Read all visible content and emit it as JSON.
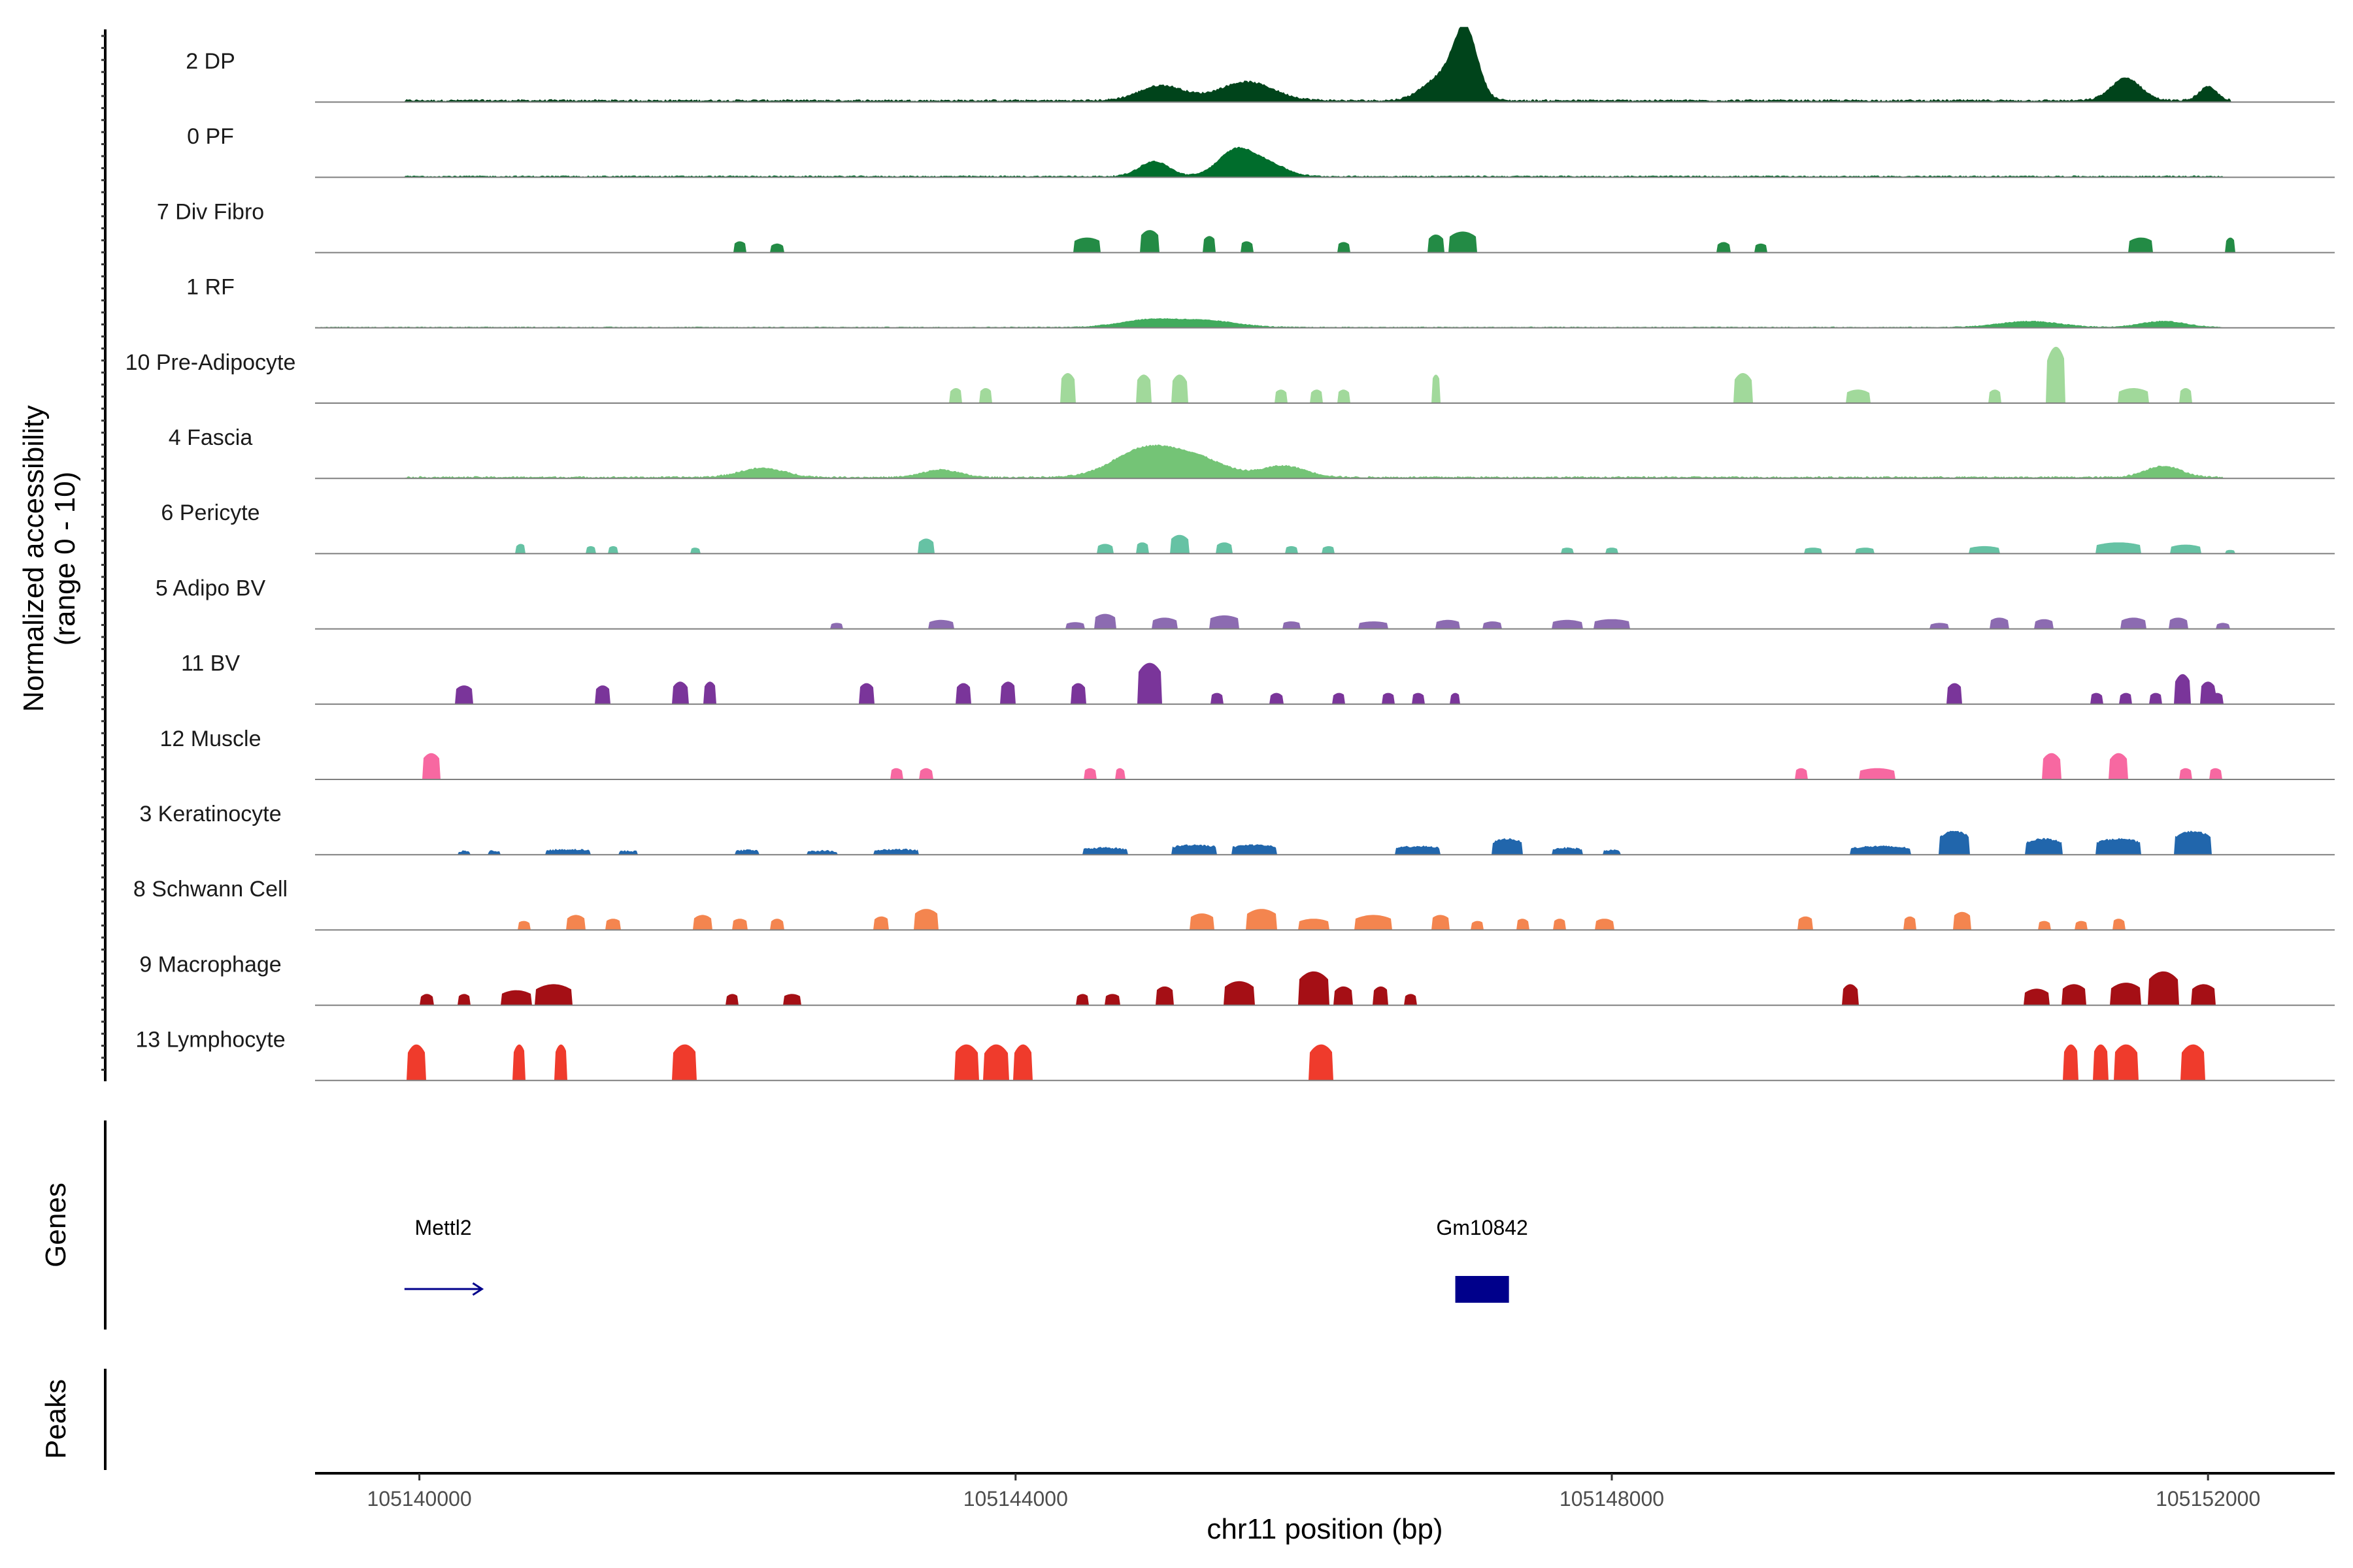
{
  "chart_data": {
    "type": "area",
    "ylabel_line1": "Normalized accessibility",
    "ylabel_line2": "(range 0 - 10)",
    "xlabel": "chr11 position (bp)",
    "xlim": [
      105139300,
      105152850
    ],
    "ylim": [
      0,
      10
    ],
    "xticks": [
      {
        "value": 105140000,
        "label": "105140000"
      },
      {
        "value": 105144000,
        "label": "105144000"
      },
      {
        "value": 105148000,
        "label": "105148000"
      },
      {
        "value": 105152000,
        "label": "105152000"
      }
    ],
    "genes_label": "Genes",
    "peaks_label": "Peaks",
    "genes": [
      {
        "name": "Mettl2",
        "start": 105139900,
        "end": 105140420,
        "strand": "+",
        "kind": "arrow",
        "color": "#00008b"
      },
      {
        "name": "Gm10842",
        "start": 105146950,
        "end": 105147310,
        "strand": "+",
        "kind": "block",
        "color": "#00008b"
      }
    ],
    "series": [
      {
        "name": "2 DP",
        "color": "#00441b",
        "noise": 0.45,
        "continuous": true,
        "range": [
          105139900,
          105152150
        ],
        "peaks": [
          [
            105147020,
            9.0,
            80
          ],
          [
            105146850,
            3.0,
            120
          ],
          [
            105151450,
            3.0,
            100
          ],
          [
            105144980,
            2.0,
            150
          ],
          [
            105145550,
            2.5,
            180
          ],
          [
            105152000,
            1.8,
            60
          ]
        ]
      },
      {
        "name": "0 PF",
        "color": "#006d2c",
        "noise": 0.3,
        "continuous": true,
        "range": [
          105139900,
          105152100
        ],
        "peaks": [
          [
            105145480,
            3.5,
            120
          ],
          [
            105144930,
            2.0,
            100
          ],
          [
            105145700,
            1.5,
            120
          ]
        ]
      },
      {
        "name": "7 Div Fibro",
        "color": "#238b45",
        "noise": 0.0,
        "continuous": false,
        "peaks": [
          [
            105142150,
            1.5,
            40
          ],
          [
            105142400,
            1.2,
            40
          ],
          [
            105144480,
            2.0,
            90
          ],
          [
            105144900,
            3.0,
            60
          ],
          [
            105145300,
            2.2,
            40
          ],
          [
            105145550,
            1.5,
            40
          ],
          [
            105146200,
            1.4,
            40
          ],
          [
            105146820,
            2.4,
            50
          ],
          [
            105147000,
            2.8,
            90
          ],
          [
            105148750,
            1.4,
            40
          ],
          [
            105149000,
            1.2,
            40
          ],
          [
            105151550,
            2.0,
            80
          ],
          [
            105152150,
            2.0,
            30
          ]
        ]
      },
      {
        "name": "1 RF",
        "color": "#41ab5d",
        "noise": 0.2,
        "continuous": true,
        "range": [
          105139300,
          105152100
        ],
        "peaks": [
          [
            105144900,
            1.0,
            200
          ],
          [
            105145300,
            0.8,
            200
          ],
          [
            105150800,
            0.8,
            200
          ],
          [
            105151700,
            0.8,
            150
          ]
        ]
      },
      {
        "name": "10 Pre-Adipocyte",
        "color": "#a1d99b",
        "noise": 0.0,
        "continuous": false,
        "peaks": [
          [
            105143600,
            2.0,
            40
          ],
          [
            105143800,
            2.0,
            40
          ],
          [
            105144350,
            4.0,
            50
          ],
          [
            105144860,
            3.8,
            50
          ],
          [
            105145100,
            3.8,
            50
          ],
          [
            105145780,
            1.8,
            40
          ],
          [
            105146020,
            1.8,
            40
          ],
          [
            105146200,
            1.8,
            40
          ],
          [
            105146820,
            3.8,
            30
          ],
          [
            105148880,
            4.0,
            60
          ],
          [
            105149650,
            1.8,
            80
          ],
          [
            105150570,
            1.8,
            40
          ],
          [
            105150980,
            7.5,
            60
          ],
          [
            105151500,
            2.0,
            100
          ],
          [
            105151850,
            2.0,
            40
          ]
        ]
      },
      {
        "name": "4 Fascia",
        "color": "#74c476",
        "noise": 0.35,
        "continuous": true,
        "range": [
          105139900,
          105152100
        ],
        "peaks": [
          [
            105144850,
            3.5,
            200
          ],
          [
            105145200,
            2.5,
            200
          ],
          [
            105145800,
            1.5,
            150
          ],
          [
            105151700,
            1.5,
            120
          ],
          [
            105142300,
            1.2,
            150
          ],
          [
            105143500,
            1.0,
            120
          ]
        ]
      },
      {
        "name": "6 Pericyte",
        "color": "#66c2a4",
        "noise": 0.0,
        "continuous": false,
        "peaks": [
          [
            105140680,
            1.3,
            30
          ],
          [
            105141150,
            1.0,
            30
          ],
          [
            105141300,
            1.0,
            30
          ],
          [
            105141850,
            0.8,
            30
          ],
          [
            105143400,
            2.0,
            50
          ],
          [
            105144600,
            1.3,
            50
          ],
          [
            105144850,
            1.5,
            40
          ],
          [
            105145100,
            2.5,
            60
          ],
          [
            105145400,
            1.5,
            50
          ],
          [
            105145850,
            1.0,
            40
          ],
          [
            105146100,
            1.0,
            40
          ],
          [
            105147700,
            0.8,
            40
          ],
          [
            105148000,
            0.8,
            40
          ],
          [
            105149350,
            0.8,
            60
          ],
          [
            105149700,
            0.8,
            60
          ],
          [
            105150500,
            1.0,
            100
          ],
          [
            105151400,
            1.5,
            150
          ],
          [
            105151850,
            1.2,
            100
          ],
          [
            105152150,
            0.5,
            30
          ]
        ]
      },
      {
        "name": "5 Adipo BV",
        "color": "#8c6bb1",
        "noise": 0.0,
        "continuous": false,
        "peaks": [
          [
            105142800,
            0.8,
            40
          ],
          [
            105143500,
            1.2,
            80
          ],
          [
            105144400,
            0.9,
            60
          ],
          [
            105144600,
            2.0,
            70
          ],
          [
            105145000,
            1.5,
            80
          ],
          [
            105145400,
            1.8,
            100
          ],
          [
            105145850,
            1.0,
            60
          ],
          [
            105146400,
            1.0,
            100
          ],
          [
            105146900,
            1.2,
            80
          ],
          [
            105147200,
            1.0,
            60
          ],
          [
            105147700,
            1.2,
            100
          ],
          [
            105148000,
            1.3,
            120
          ],
          [
            105150200,
            0.8,
            60
          ],
          [
            105150600,
            1.5,
            60
          ],
          [
            105150900,
            1.3,
            60
          ],
          [
            105151500,
            1.5,
            80
          ],
          [
            105151800,
            1.5,
            60
          ],
          [
            105152100,
            0.8,
            40
          ]
        ]
      },
      {
        "name": "11 BV",
        "color": "#7a359a",
        "noise": 0.0,
        "continuous": false,
        "peaks": [
          [
            105140300,
            2.5,
            60
          ],
          [
            105141230,
            2.5,
            50
          ],
          [
            105141750,
            3.0,
            50
          ],
          [
            105141950,
            3.0,
            40
          ],
          [
            105143000,
            2.8,
            50
          ],
          [
            105143650,
            2.8,
            50
          ],
          [
            105143950,
            3.0,
            50
          ],
          [
            105144420,
            2.8,
            50
          ],
          [
            105144900,
            5.5,
            80
          ],
          [
            105145350,
            1.5,
            40
          ],
          [
            105145750,
            1.5,
            40
          ],
          [
            105146170,
            1.5,
            40
          ],
          [
            105146500,
            1.5,
            40
          ],
          [
            105146700,
            1.5,
            40
          ],
          [
            105146950,
            1.5,
            30
          ],
          [
            105150300,
            2.8,
            50
          ],
          [
            105151250,
            1.5,
            40
          ],
          [
            105151450,
            1.5,
            40
          ],
          [
            105151650,
            1.5,
            40
          ],
          [
            105151830,
            4.0,
            50
          ],
          [
            105152000,
            3.0,
            50
          ],
          [
            105152060,
            1.5,
            40
          ]
        ]
      },
      {
        "name": "12 Muscle",
        "color": "#f768a1",
        "noise": 0.0,
        "continuous": false,
        "peaks": [
          [
            105140080,
            3.5,
            60
          ],
          [
            105143200,
            1.5,
            40
          ],
          [
            105143400,
            1.5,
            40
          ],
          [
            105144500,
            1.5,
            40
          ],
          [
            105144700,
            1.5,
            30
          ],
          [
            105149270,
            1.5,
            40
          ],
          [
            105149780,
            1.5,
            120
          ],
          [
            105150950,
            3.5,
            60
          ],
          [
            105151400,
            3.5,
            60
          ],
          [
            105151850,
            1.5,
            40
          ],
          [
            105152050,
            1.5,
            40
          ]
        ]
      },
      {
        "name": "3 Keratinocyte",
        "color": "#2166ac",
        "noise": 0.25,
        "continuous": false,
        "peaks": [
          [
            105140300,
            0.4,
            40
          ],
          [
            105140500,
            0.4,
            40
          ],
          [
            105141000,
            0.6,
            150
          ],
          [
            105141400,
            0.4,
            60
          ],
          [
            105142200,
            0.5,
            80
          ],
          [
            105142700,
            0.4,
            100
          ],
          [
            105143200,
            0.6,
            150
          ],
          [
            105144600,
            0.8,
            150
          ],
          [
            105145200,
            1.2,
            150
          ],
          [
            105145600,
            1.2,
            150
          ],
          [
            105146700,
            1.0,
            150
          ],
          [
            105147300,
            2.0,
            100
          ],
          [
            105147700,
            0.8,
            100
          ],
          [
            105148000,
            0.5,
            60
          ],
          [
            105149800,
            1.0,
            200
          ],
          [
            105150300,
            3.0,
            100
          ],
          [
            105150900,
            2.0,
            120
          ],
          [
            105151400,
            2.0,
            150
          ],
          [
            105151900,
            3.0,
            120
          ]
        ]
      },
      {
        "name": "8 Schwann Cell",
        "color": "#f4854f",
        "noise": 0.0,
        "continuous": false,
        "peaks": [
          [
            105140700,
            1.2,
            40
          ],
          [
            105141050,
            2.0,
            60
          ],
          [
            105141300,
            1.5,
            50
          ],
          [
            105141900,
            2.0,
            60
          ],
          [
            105142150,
            1.5,
            50
          ],
          [
            105142400,
            1.5,
            40
          ],
          [
            105143100,
            1.8,
            50
          ],
          [
            105143400,
            2.8,
            80
          ],
          [
            105145250,
            2.2,
            80
          ],
          [
            105145650,
            2.8,
            100
          ],
          [
            105146000,
            1.5,
            100
          ],
          [
            105146400,
            2.0,
            120
          ],
          [
            105146850,
            2.0,
            60
          ],
          [
            105147100,
            1.2,
            40
          ],
          [
            105147400,
            1.5,
            40
          ],
          [
            105147650,
            1.5,
            40
          ],
          [
            105147950,
            1.5,
            60
          ],
          [
            105149300,
            1.8,
            50
          ],
          [
            105150000,
            1.8,
            40
          ],
          [
            105150350,
            2.4,
            60
          ],
          [
            105150900,
            1.2,
            40
          ],
          [
            105151150,
            1.2,
            40
          ],
          [
            105151400,
            1.5,
            40
          ]
        ]
      },
      {
        "name": "9 Macrophage",
        "color": "#a50f15",
        "noise": 0.0,
        "continuous": false,
        "peaks": [
          [
            105140050,
            1.5,
            40
          ],
          [
            105140300,
            1.5,
            40
          ],
          [
            105140650,
            2.0,
            100
          ],
          [
            105140900,
            2.8,
            120
          ],
          [
            105142100,
            1.5,
            40
          ],
          [
            105142500,
            1.5,
            60
          ],
          [
            105144450,
            1.5,
            40
          ],
          [
            105144650,
            1.5,
            50
          ],
          [
            105145000,
            2.5,
            60
          ],
          [
            105145500,
            3.2,
            100
          ],
          [
            105146000,
            4.5,
            100
          ],
          [
            105146200,
            2.5,
            60
          ],
          [
            105146450,
            2.5,
            50
          ],
          [
            105146650,
            1.5,
            40
          ],
          [
            105149600,
            2.8,
            50
          ],
          [
            105150850,
            2.2,
            80
          ],
          [
            105151100,
            2.8,
            80
          ],
          [
            105151450,
            3.0,
            100
          ],
          [
            105151700,
            4.5,
            100
          ],
          [
            105151970,
            2.8,
            80
          ]
        ]
      },
      {
        "name": "13 Lymphocyte",
        "color": "#ef3b2c",
        "noise": 0.0,
        "continuous": false,
        "peaks": [
          [
            105139980,
            4.8,
            60
          ],
          [
            105140670,
            4.8,
            40
          ],
          [
            105140950,
            4.8,
            40
          ],
          [
            105141780,
            4.8,
            80
          ],
          [
            105143670,
            4.8,
            80
          ],
          [
            105143870,
            4.8,
            80
          ],
          [
            105144050,
            4.8,
            60
          ],
          [
            105146050,
            4.8,
            80
          ],
          [
            105151080,
            4.8,
            50
          ],
          [
            105151280,
            4.8,
            50
          ],
          [
            105151450,
            4.8,
            80
          ],
          [
            105151900,
            4.8,
            80
          ]
        ]
      }
    ]
  }
}
